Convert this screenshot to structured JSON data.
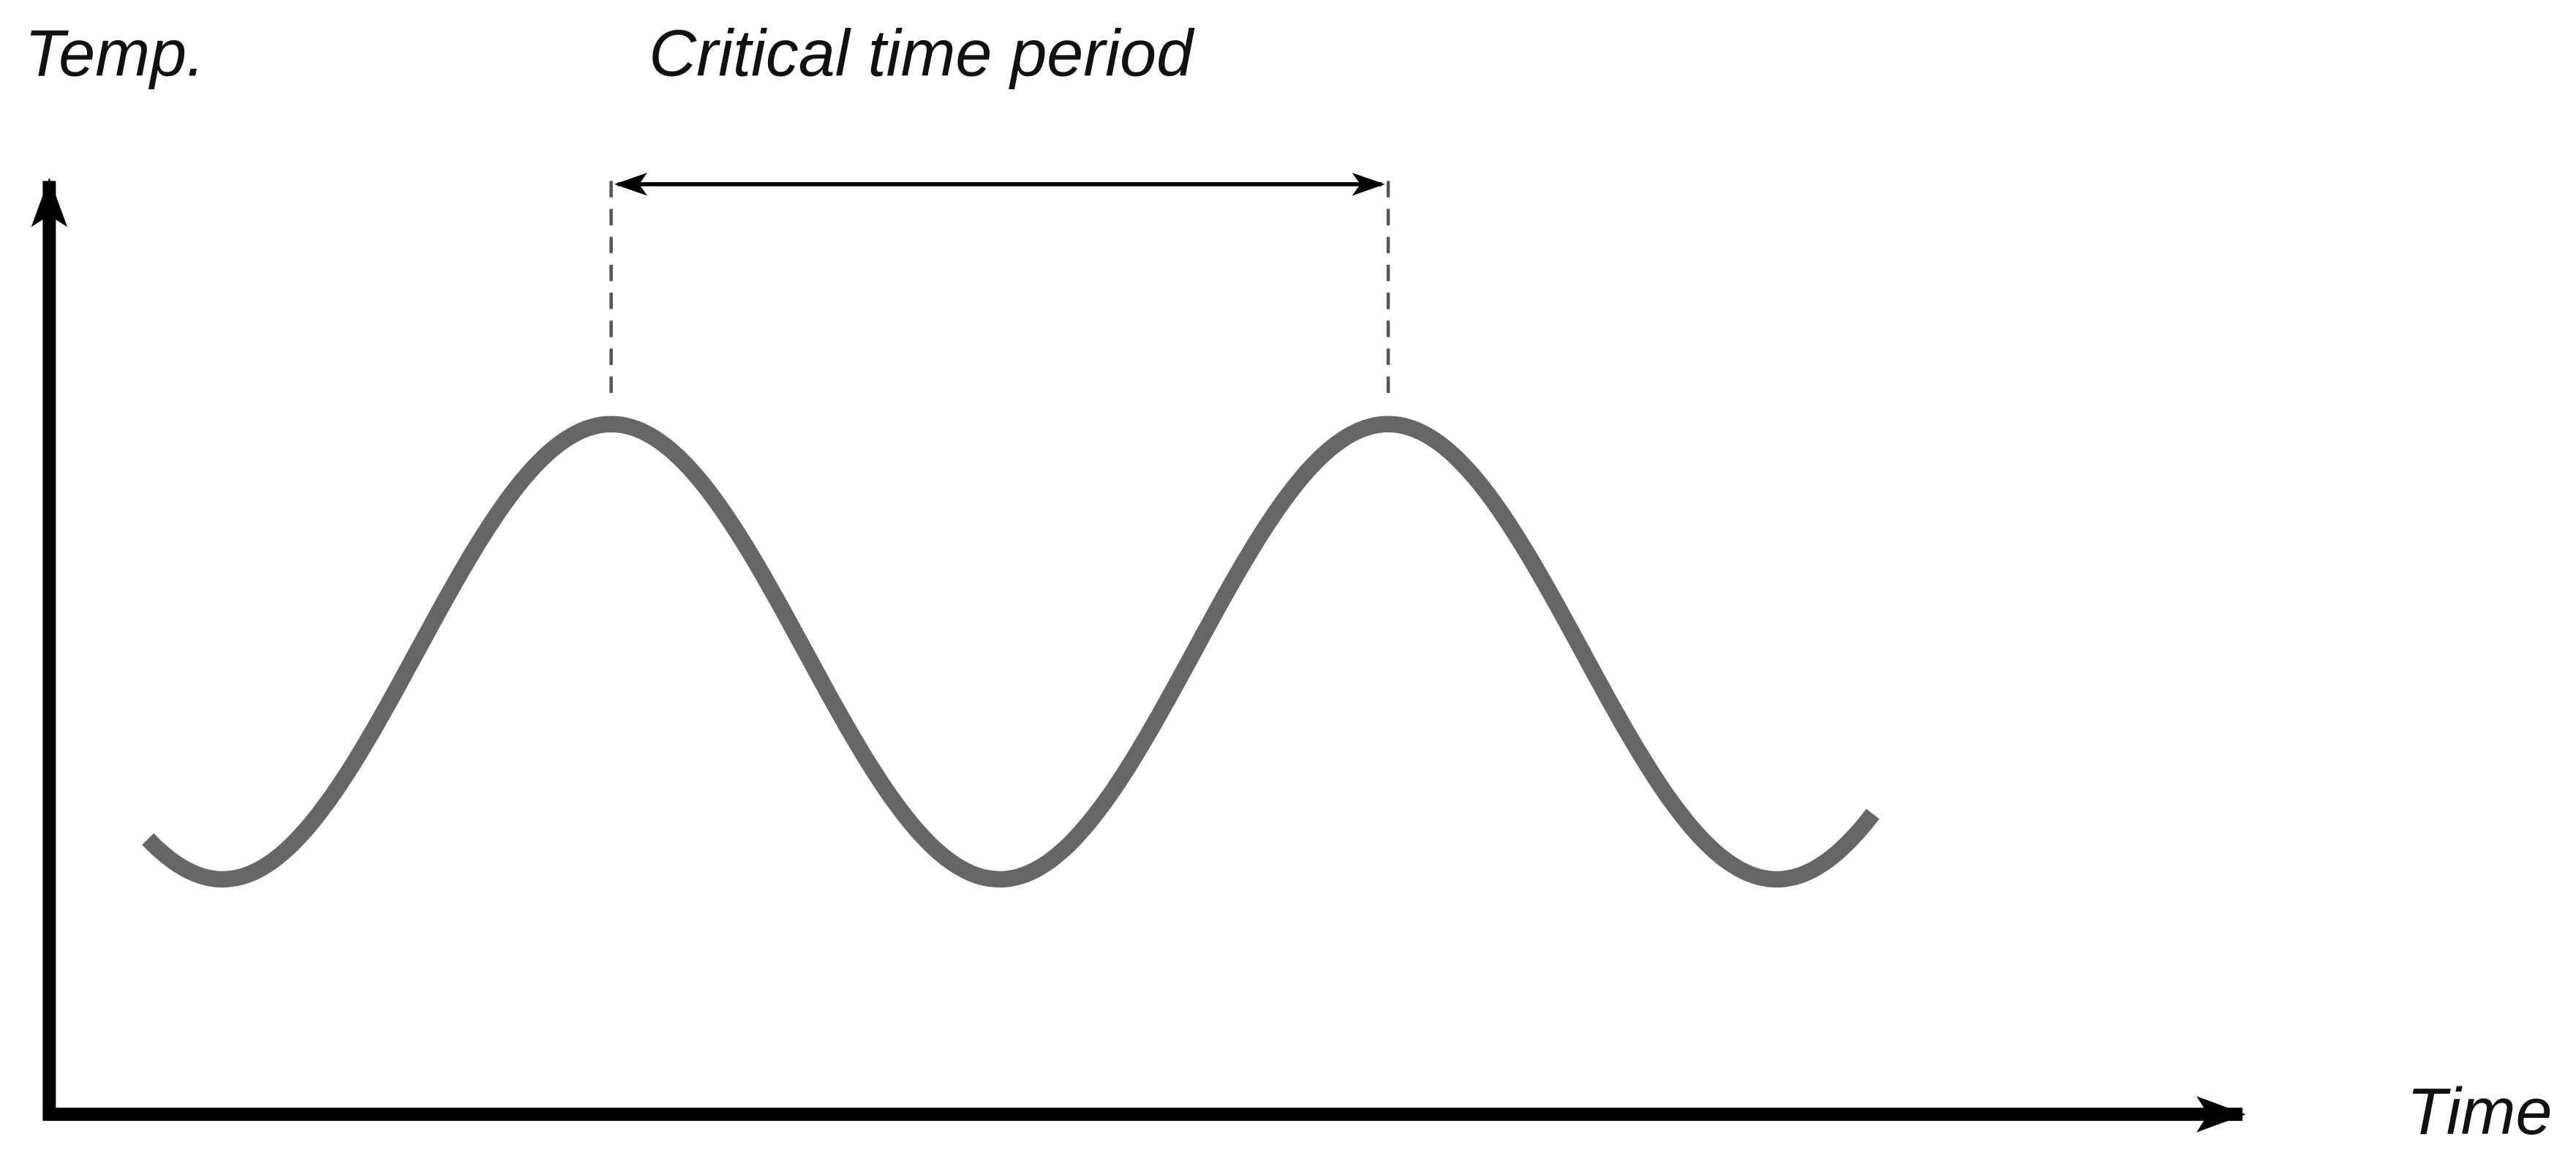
{
  "y_axis_label": "Temp.",
  "annotation": "Critical time period",
  "x_axis_label": "Time"
}
